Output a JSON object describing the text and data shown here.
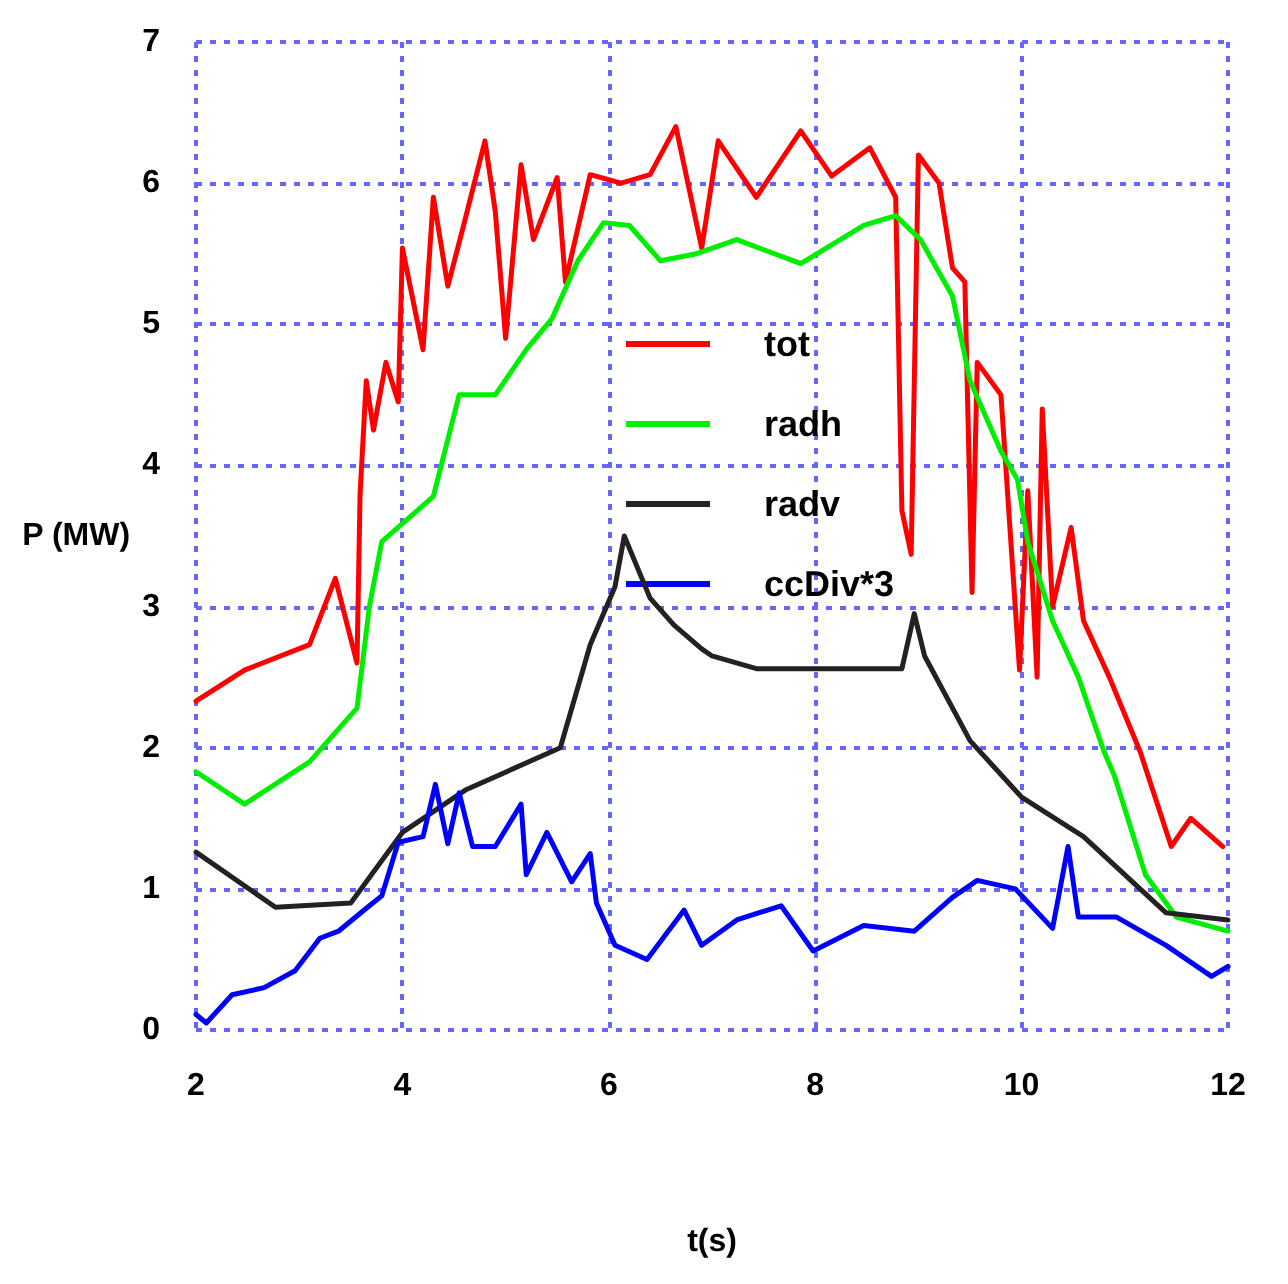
{
  "chart_data": {
    "type": "line",
    "xlabel": "t(s)",
    "ylabel": "P (MW)",
    "xlim": [
      2,
      12
    ],
    "ylim": [
      0,
      7
    ],
    "xticks": [
      2,
      4,
      6,
      8,
      10,
      12
    ],
    "yticks": [
      0,
      1,
      2,
      3,
      4,
      5,
      6,
      7
    ],
    "grid": true,
    "legend": "center",
    "marker": "none",
    "line_style": "solid",
    "series": [
      {
        "name": "tot",
        "color": "#ff0000",
        "x": [
          2.0,
          2.47,
          3.1,
          3.35,
          3.56,
          3.59,
          3.65,
          3.72,
          3.84,
          3.96,
          4.0,
          4.2,
          4.3,
          4.44,
          4.6,
          4.8,
          4.9,
          5.0,
          5.15,
          5.27,
          5.5,
          5.58,
          5.82,
          6.12,
          6.4,
          6.65,
          6.9,
          7.06,
          7.43,
          7.86,
          8.16,
          8.53,
          8.78,
          8.84,
          8.93,
          9.0,
          9.2,
          9.33,
          9.45,
          9.52,
          9.57,
          9.8,
          9.98,
          10.06,
          10.15,
          10.2,
          10.3,
          10.48,
          10.6,
          10.85,
          11.15,
          11.45,
          11.64,
          11.95
        ],
        "values": [
          2.33,
          2.55,
          2.73,
          3.2,
          2.6,
          3.8,
          4.6,
          4.25,
          4.73,
          4.45,
          5.54,
          4.82,
          5.9,
          5.27,
          5.72,
          6.3,
          5.8,
          4.9,
          6.13,
          5.6,
          6.04,
          5.3,
          6.06,
          6.0,
          6.06,
          6.4,
          5.54,
          6.3,
          5.9,
          6.37,
          6.05,
          6.25,
          5.9,
          3.68,
          3.37,
          6.2,
          6.0,
          5.4,
          5.3,
          3.1,
          4.73,
          4.5,
          2.55,
          3.82,
          2.5,
          4.4,
          3.0,
          3.56,
          2.9,
          2.5,
          1.97,
          1.3,
          1.5,
          1.3
        ]
      },
      {
        "name": "radh",
        "color": "#00ee00",
        "x": [
          2.0,
          2.47,
          3.1,
          3.56,
          3.68,
          3.8,
          4.3,
          4.55,
          4.9,
          5.2,
          5.45,
          5.7,
          5.95,
          6.2,
          6.5,
          6.85,
          7.24,
          7.86,
          8.47,
          8.78,
          9.02,
          9.33,
          9.5,
          9.8,
          9.96,
          10.06,
          10.3,
          10.55,
          10.8,
          10.9,
          11.2,
          11.5,
          12.0
        ],
        "values": [
          1.83,
          1.6,
          1.9,
          2.28,
          3.0,
          3.46,
          3.78,
          4.5,
          4.5,
          4.82,
          5.04,
          5.45,
          5.72,
          5.7,
          5.45,
          5.5,
          5.6,
          5.43,
          5.7,
          5.77,
          5.6,
          5.2,
          4.6,
          4.1,
          3.9,
          3.46,
          2.9,
          2.5,
          1.97,
          1.8,
          1.1,
          0.8,
          0.7
        ]
      },
      {
        "name": "radv",
        "color": "#222222",
        "x": [
          2.0,
          2.77,
          3.5,
          3.7,
          4.0,
          4.61,
          5.53,
          5.82,
          6.06,
          6.15,
          6.4,
          6.63,
          6.9,
          7.0,
          7.43,
          8.47,
          8.84,
          8.96,
          9.06,
          9.5,
          10.0,
          10.6,
          11.4,
          12.0
        ],
        "values": [
          1.26,
          0.87,
          0.9,
          1.1,
          1.4,
          1.7,
          2.0,
          2.73,
          3.14,
          3.5,
          3.06,
          2.87,
          2.7,
          2.65,
          2.56,
          2.56,
          2.56,
          2.95,
          2.65,
          2.05,
          1.65,
          1.37,
          0.83,
          0.78
        ]
      },
      {
        "name": "ccDiv*3",
        "color": "#0000ff",
        "x": [
          2.0,
          2.1,
          2.35,
          2.66,
          2.96,
          3.2,
          3.38,
          3.68,
          3.8,
          3.96,
          4.2,
          4.32,
          4.44,
          4.55,
          4.68,
          4.9,
          5.15,
          5.2,
          5.4,
          5.64,
          5.82,
          5.88,
          6.06,
          6.37,
          6.73,
          6.9,
          7.24,
          7.67,
          7.98,
          8.47,
          8.96,
          9.33,
          9.57,
          9.94,
          10.3,
          10.45,
          10.55,
          10.92,
          11.4,
          11.84,
          12.0
        ],
        "values": [
          0.11,
          0.05,
          0.25,
          0.3,
          0.42,
          0.65,
          0.7,
          0.88,
          0.95,
          1.33,
          1.37,
          1.74,
          1.32,
          1.68,
          1.3,
          1.3,
          1.6,
          1.1,
          1.4,
          1.05,
          1.25,
          0.9,
          0.6,
          0.5,
          0.85,
          0.6,
          0.78,
          0.88,
          0.56,
          0.74,
          0.7,
          0.94,
          1.06,
          1.0,
          0.72,
          1.3,
          0.8,
          0.8,
          0.6,
          0.38,
          0.45
        ]
      }
    ]
  }
}
